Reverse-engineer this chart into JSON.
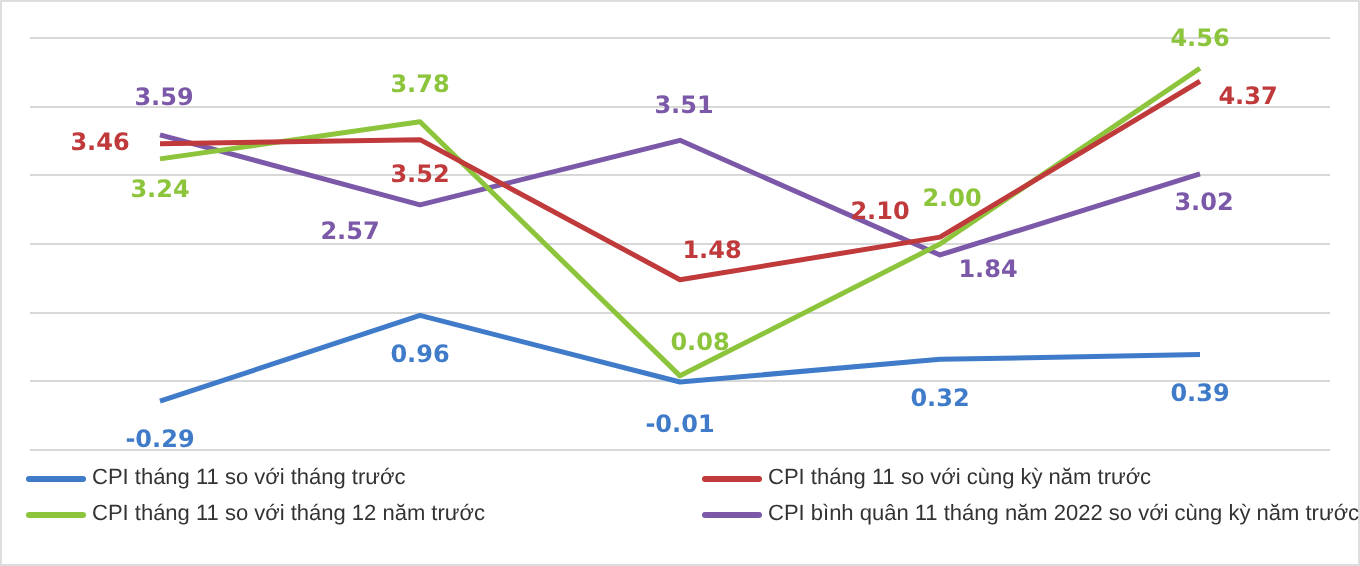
{
  "chart_data": {
    "type": "line",
    "categories": [
      null,
      null,
      null,
      null,
      null
    ],
    "series": [
      {
        "name": "CPI tháng 11 so với tháng trước",
        "color": "#3f7bc9",
        "values": [
          -0.29,
          0.96,
          -0.01,
          0.32,
          0.39
        ],
        "value_labels": [
          "-0.29",
          "0.96",
          "-0.01",
          "0.32",
          "0.39"
        ]
      },
      {
        "name": "CPI tháng 11 so với cùng kỳ năm trước",
        "color": "#c0393b",
        "values": [
          3.46,
          3.52,
          1.48,
          2.1,
          4.37
        ],
        "value_labels": [
          "3.46",
          "3.52",
          "1.48",
          "2.10",
          "4.37"
        ]
      },
      {
        "name": "CPI tháng 11 so với tháng 12 năm trước",
        "color": "#8cc43c",
        "values": [
          3.24,
          3.78,
          0.08,
          2.0,
          4.56
        ],
        "value_labels": [
          "3.24",
          "3.78",
          "0.08",
          "2.00",
          "4.56"
        ]
      },
      {
        "name": "CPI bình quân 11 tháng năm 2022 so với cùng kỳ năm trước",
        "color": "#7b58a8",
        "values": [
          3.59,
          2.57,
          3.51,
          1.84,
          3.02
        ],
        "value_labels": [
          "3.59",
          "2.57",
          "3.51",
          "1.84",
          "3.02"
        ]
      }
    ],
    "tick_labels": false,
    "grid": "y",
    "legend": "bottom",
    "marker": "none",
    "line_style": "solid"
  }
}
